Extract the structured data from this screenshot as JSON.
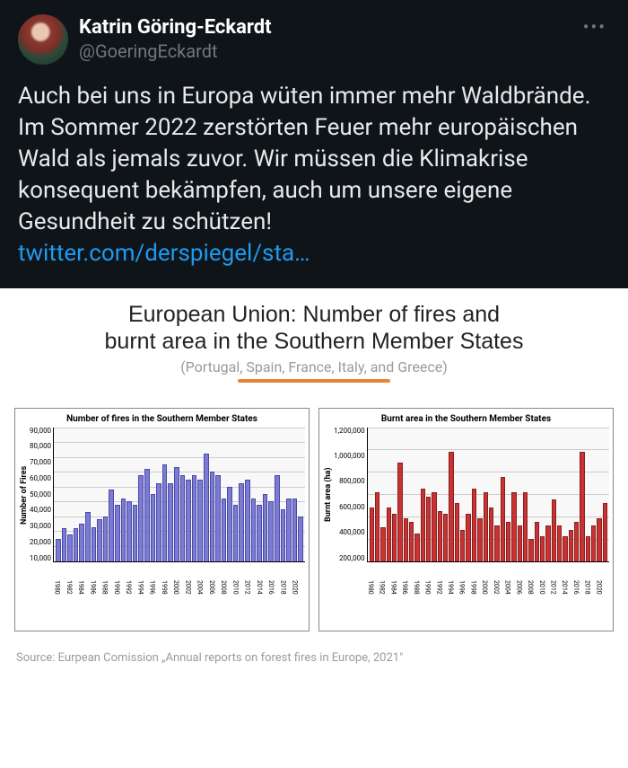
{
  "tweet": {
    "display_name": "Katrin Göring-Eckardt",
    "handle": "@GoeringEckardt",
    "body_text": "Auch bei uns in Europa wüten immer mehr Waldbrände. Im Sommer 2022 zerstörten Feuer mehr europäischen Wald als jemals zuvor. Wir müssen die Klimakrise konsequent bekämpfen, auch um unsere eigene Gesundheit zu schützen!",
    "link_text": "twitter.com/derspiegel/sta…",
    "colors": {
      "bg": "#0f1419",
      "text": "#e7e9ea",
      "muted": "#71767b",
      "link": "#1d9bf0"
    }
  },
  "infographic": {
    "title_line1": "European Union: Number of fires and",
    "title_line2": "burnt area in the Southern Member States",
    "subtitle": "(Portugal, Spain, France, Italy, and Greece)",
    "underline_color": "#e8833a",
    "source": "Source: Eurpean Comission „Annual reports on forest fires in Europe, 2021\"",
    "chart_fires": {
      "type": "bar",
      "title": "Number of fires in the Southern Member States",
      "ylabel": "Number of Fires",
      "ymax": 90000,
      "yticks": [
        "10,000",
        "20,000",
        "30,000",
        "40,000",
        "50,000",
        "60,000",
        "70,000",
        "80,000",
        "90,000"
      ],
      "bar_color": "#7b7bd4",
      "bar_border": "#4a4aa8",
      "grid_color": "#cccccc",
      "years": [
        1980,
        1981,
        1982,
        1983,
        1984,
        1985,
        1986,
        1987,
        1988,
        1989,
        1990,
        1991,
        1992,
        1993,
        1994,
        1995,
        1996,
        1997,
        1998,
        1999,
        2000,
        2001,
        2002,
        2003,
        2004,
        2005,
        2006,
        2007,
        2008,
        2009,
        2010,
        2011,
        2012,
        2013,
        2014,
        2015,
        2016,
        2017,
        2018,
        2019,
        2020,
        2021
      ],
      "xlabels": [
        "1980",
        "",
        "1982",
        "",
        "1984",
        "",
        "1986",
        "",
        "1988",
        "",
        "1990",
        "",
        "1992",
        "",
        "1994",
        "",
        "1996",
        "",
        "1998",
        "",
        "2000",
        "",
        "2002",
        "",
        "2004",
        "",
        "2006",
        "",
        "2008",
        "",
        "2010",
        "",
        "2012",
        "",
        "2014",
        "",
        "2016",
        "",
        "2018",
        "",
        "2020",
        ""
      ],
      "values": [
        15000,
        22000,
        18000,
        22000,
        25000,
        33000,
        23000,
        28000,
        30000,
        48000,
        38000,
        42000,
        40000,
        38000,
        58000,
        62000,
        45000,
        52000,
        65000,
        52000,
        63000,
        58000,
        55000,
        58000,
        55000,
        72000,
        60000,
        58000,
        42000,
        50000,
        38000,
        52000,
        55000,
        42000,
        38000,
        45000,
        40000,
        58000,
        35000,
        42000,
        42000,
        30000
      ]
    },
    "chart_area": {
      "type": "bar",
      "title": "Burnt area in the Southern Member States",
      "ylabel": "Burnt area (ha)",
      "ymax": 1200000,
      "yticks": [
        "200,000",
        "400,000",
        "600,000",
        "800,000",
        "1,000,000",
        "1,200,000"
      ],
      "bar_color": "#c83232",
      "bar_border": "#8a1f1f",
      "grid_color": "#cccccc",
      "years": [
        1980,
        1981,
        1982,
        1983,
        1984,
        1985,
        1986,
        1987,
        1988,
        1989,
        1990,
        1991,
        1992,
        1993,
        1994,
        1995,
        1996,
        1997,
        1998,
        1999,
        2000,
        2001,
        2002,
        2003,
        2004,
        2005,
        2006,
        2007,
        2008,
        2009,
        2010,
        2011,
        2012,
        2013,
        2014,
        2015,
        2016,
        2017,
        2018,
        2019,
        2020,
        2021
      ],
      "xlabels": [
        "1980",
        "",
        "1982",
        "",
        "1984",
        "",
        "1986",
        "",
        "1988",
        "",
        "1990",
        "",
        "1992",
        "",
        "1994",
        "",
        "1996",
        "",
        "1998",
        "",
        "2000",
        "",
        "2002",
        "",
        "2004",
        "",
        "2006",
        "",
        "2008",
        "",
        "2010",
        "",
        "2012",
        "",
        "2014",
        "",
        "2016",
        "",
        "2018",
        "",
        "2020",
        ""
      ],
      "values": [
        480000,
        620000,
        300000,
        480000,
        420000,
        880000,
        380000,
        350000,
        250000,
        650000,
        580000,
        620000,
        450000,
        420000,
        980000,
        520000,
        280000,
        420000,
        650000,
        380000,
        620000,
        480000,
        320000,
        750000,
        350000,
        620000,
        320000,
        620000,
        200000,
        350000,
        220000,
        320000,
        550000,
        320000,
        220000,
        280000,
        350000,
        980000,
        220000,
        320000,
        380000,
        520000
      ]
    }
  }
}
